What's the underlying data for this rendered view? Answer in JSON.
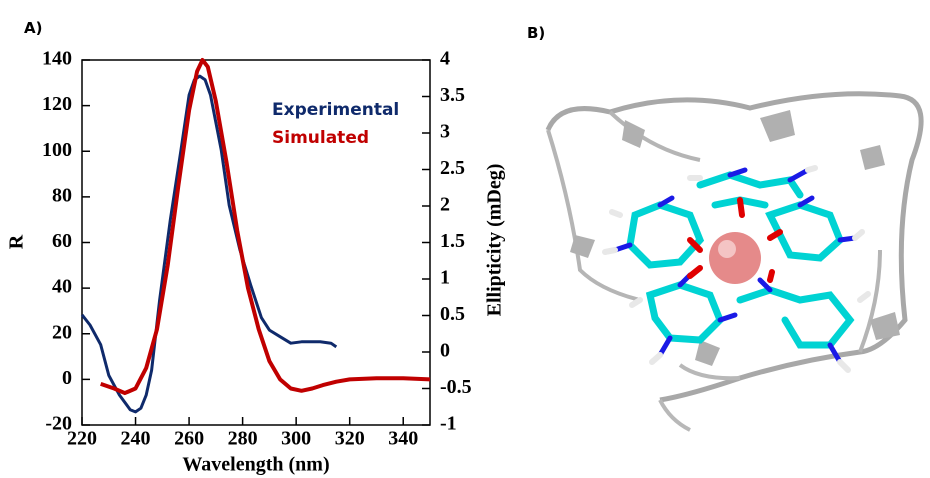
{
  "panels": {
    "a_label": "A)",
    "b_label": "B)"
  },
  "chart_data": {
    "type": "line",
    "xlabel": "Wavelength (nm)",
    "ylabel": "R",
    "y2label": "Ellipticity (mDeg)",
    "xlim": [
      220,
      350
    ],
    "xticks": [
      220,
      240,
      260,
      280,
      300,
      320,
      340
    ],
    "ylim": [
      -20,
      140
    ],
    "yticks": [
      -20,
      0,
      20,
      40,
      60,
      80,
      100,
      120,
      140
    ],
    "y2lim": [
      -1,
      4
    ],
    "y2ticks": [
      -1,
      -0.5,
      0,
      0.5,
      1,
      1.5,
      2,
      2.5,
      3,
      3.5,
      4
    ],
    "series": [
      {
        "name": "Experimental",
        "color": "#0f2a6b",
        "axis": "y2",
        "x": [
          220,
          223,
          227,
          230,
          234,
          238,
          240,
          242,
          244,
          246,
          249,
          253,
          257,
          260,
          262,
          264,
          266,
          268,
          272,
          275,
          279,
          283,
          287,
          290,
          294,
          298,
          302,
          305,
          309,
          313,
          315
        ],
        "values": [
          0.51,
          0.37,
          0.1,
          -0.32,
          -0.59,
          -0.79,
          -0.82,
          -0.77,
          -0.59,
          -0.25,
          0.71,
          1.81,
          2.77,
          3.52,
          3.73,
          3.78,
          3.73,
          3.52,
          2.77,
          2.01,
          1.4,
          0.92,
          0.47,
          0.3,
          0.21,
          0.12,
          0.14,
          0.14,
          0.14,
          0.12,
          0.07
        ]
      },
      {
        "name": "Simulated",
        "color": "#c00000",
        "x": [
          227,
          232,
          236,
          240,
          244,
          248,
          252,
          256,
          260,
          263,
          265,
          267,
          270,
          274,
          278,
          282,
          286,
          290,
          294,
          298,
          302,
          306,
          310,
          315,
          320,
          330,
          340,
          350
        ],
        "values": [
          -2,
          -4,
          -6,
          -4,
          5,
          22,
          50,
          85,
          118,
          135,
          140,
          137,
          122,
          95,
          65,
          40,
          22,
          8,
          0,
          -4,
          -5,
          -4,
          -2.5,
          -1,
          0,
          0.5,
          0.5,
          0
        ]
      }
    ]
  }
}
